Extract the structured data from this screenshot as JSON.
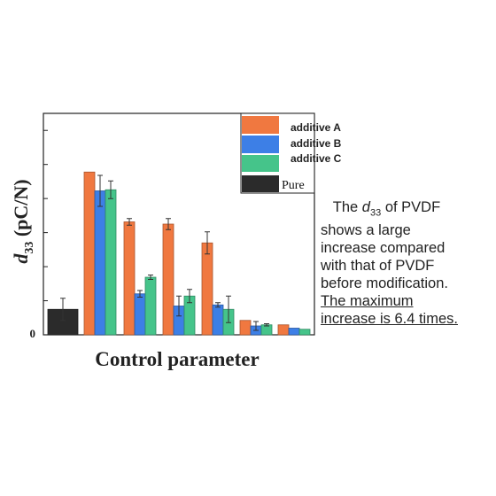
{
  "chart_data": {
    "type": "bar",
    "title": "",
    "xlabel": "Control parameter",
    "ylabel_main": "d",
    "ylabel_sub": "33",
    "ylabel_unit": " (pC/N)",
    "y_tick_labels": [
      "0"
    ],
    "ylim": [
      0,
      1.0
    ],
    "legend_position": "top-right",
    "baseline": {
      "name": "Pure",
      "value": 0.115,
      "error": 0.05,
      "color": "#2b2b2b"
    },
    "categories": [
      "",
      "",
      "",
      "",
      "",
      ""
    ],
    "series": [
      {
        "name": "additive A",
        "color": "#f07840",
        "values": [
          0.735,
          0.51,
          0.5,
          0.415,
          0.065,
          0.045
        ],
        "errors": [
          0.0,
          0.015,
          0.025,
          0.05,
          0.0,
          0.0
        ]
      },
      {
        "name": "additive B",
        "color": "#3d7fe6",
        "values": [
          0.65,
          0.185,
          0.13,
          0.135,
          0.04,
          0.03
        ],
        "errors": [
          0.07,
          0.015,
          0.045,
          0.01,
          0.02,
          0.0
        ]
      },
      {
        "name": "additive C",
        "color": "#45c48a",
        "values": [
          0.655,
          0.26,
          0.175,
          0.115,
          0.045,
          0.025
        ],
        "errors": [
          0.04,
          0.01,
          0.03,
          0.06,
          0.005,
          0.0
        ]
      }
    ]
  },
  "annotation": {
    "line1_pre": "The ",
    "line1_sym": "d",
    "line1_sub": "33",
    "line1_post": " of PVDF",
    "line2": "shows a large",
    "line3": "increase compared",
    "line4": "with that of PVDF",
    "line5": "before modification.",
    "line6": "The maximum",
    "line7": "increase is 6.4 times."
  }
}
